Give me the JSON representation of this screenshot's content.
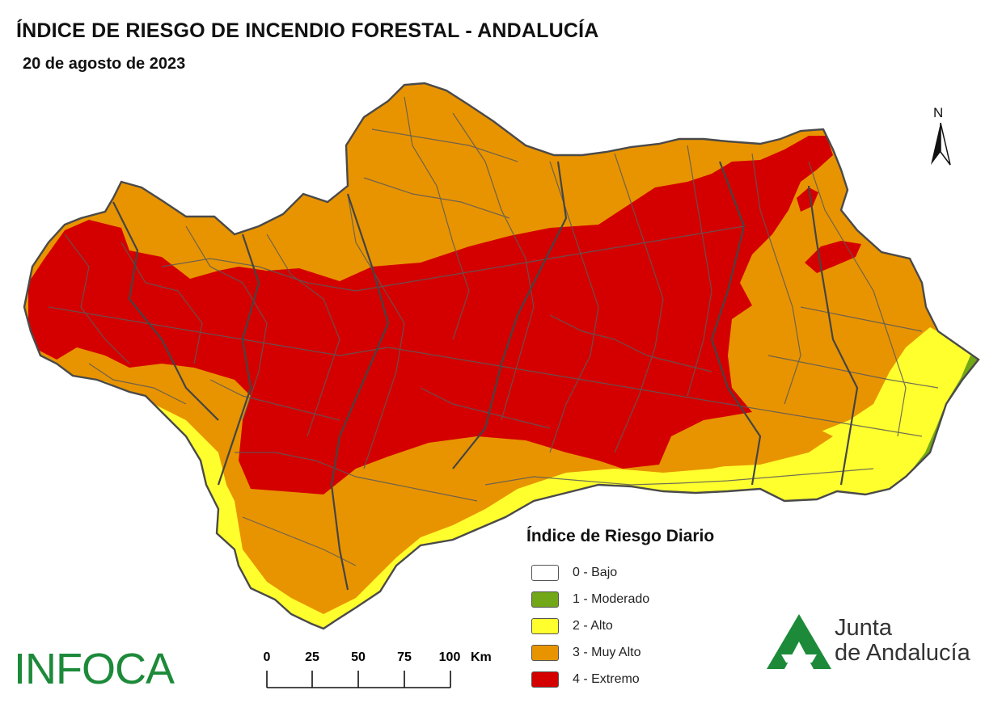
{
  "header": {
    "title": "ÍNDICE DE RIESGO DE INCENDIO FORESTAL - ANDALUCÍA",
    "date": "20 de agosto de 2023"
  },
  "north_arrow": {
    "label": "N"
  },
  "legend": {
    "title": "Índice de Riesgo Diario",
    "items": [
      {
        "label": "0 - Bajo",
        "color": "#ffffff"
      },
      {
        "label": "1 - Moderado",
        "color": "#72a817"
      },
      {
        "label": "2 - Alto",
        "color": "#ffff2e"
      },
      {
        "label": "3 - Muy Alto",
        "color": "#e89400"
      },
      {
        "label": "4 - Extremo",
        "color": "#d40000"
      }
    ]
  },
  "scale_bar": {
    "ticks": [
      "0",
      "25",
      "50",
      "75",
      "100"
    ],
    "unit": "Km"
  },
  "logos": {
    "infoca": "INFOCA",
    "junta_line1": "Junta",
    "junta_line2": "de Andalucía"
  },
  "map": {
    "region": "Andalucía",
    "colors": {
      "border": "#4a4a4a",
      "extreme": "#d40000",
      "very_high": "#e89400",
      "high": "#ffff2e",
      "moderate": "#72a817"
    }
  }
}
